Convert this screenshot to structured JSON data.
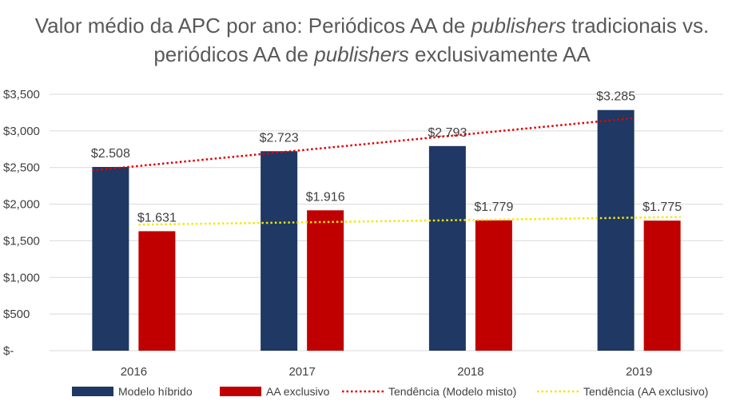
{
  "title_parts": {
    "line1_a": "Valor médio da APC por ano: Periódicos AA de ",
    "line1_italic": "publishers",
    "line1_b": " tradicionais vs.",
    "line2_a": "periódicos AA de ",
    "line2_italic": "publishers",
    "line2_b": " exclusivamente AA"
  },
  "chart_data": {
    "type": "bar",
    "title": "Valor médio da APC por ano: Periódicos AA de publishers tradicionais vs. periódicos AA de publishers exclusivamente AA",
    "categories": [
      "2016",
      "2017",
      "2018",
      "2019"
    ],
    "series": [
      {
        "name": "Modelo híbrido",
        "color": "#1f3864",
        "values": [
          2508,
          2723,
          2793,
          3285
        ],
        "labels": [
          "$2.508",
          "$2.723",
          "$2.793",
          "$3.285"
        ]
      },
      {
        "name": "AA exclusivo",
        "color": "#c00000",
        "values": [
          1631,
          1916,
          1779,
          1775
        ],
        "labels": [
          "$1.631",
          "$1.916",
          "$1.779",
          "$1.775"
        ]
      }
    ],
    "trendlines": [
      {
        "name": "Tendência (Modelo misto)",
        "color": "#e00000",
        "series_index": 0,
        "start": 2460,
        "end": 3175
      },
      {
        "name": "Tendência (AA exclusivo)",
        "color": "#f5e600",
        "series_index": 1,
        "start": 1720,
        "end": 1825
      }
    ],
    "ylim": [
      0,
      3500
    ],
    "yticks": [
      0,
      500,
      1000,
      1500,
      2000,
      2500,
      3000,
      3500
    ],
    "ytick_labels": [
      "$-",
      "$500",
      "$1,000",
      "$1,500",
      "$2,000",
      "$2,500",
      "$3,000",
      "$3,500"
    ],
    "xlabel": "",
    "ylabel": "",
    "grid": true,
    "legend_position": "bottom"
  }
}
